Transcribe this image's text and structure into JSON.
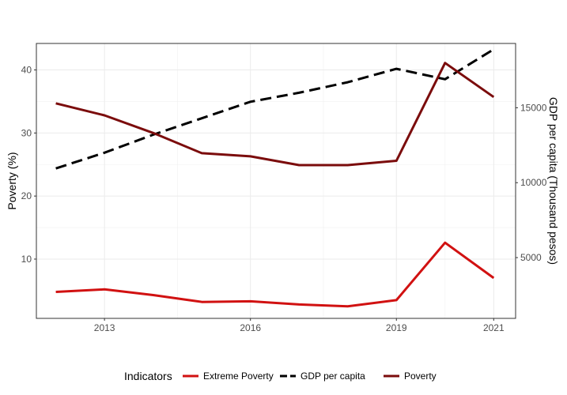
{
  "chart_data": {
    "type": "line",
    "title": "",
    "x": [
      2012,
      2013,
      2014,
      2015,
      2016,
      2017,
      2018,
      2019,
      2020,
      2021
    ],
    "xticks": [
      2013,
      2016,
      2019,
      2021
    ],
    "xlim": [
      2011.6,
      2021.45
    ],
    "ylabel": "Poverty (%)",
    "ylim": [
      0.6,
      44.2
    ],
    "yticks": [
      10,
      20,
      30,
      40
    ],
    "y2label": "GDP per capita (Thousand pesos)",
    "y2lim": [
      945,
      19290
    ],
    "y2ticks": [
      5000,
      10000,
      15000
    ],
    "grid": true,
    "legend": {
      "title": "Indicators",
      "position": "bottom"
    },
    "series": [
      {
        "name": "Extreme Poverty",
        "axis": "left",
        "color": "#d11111",
        "dash": "solid",
        "values": [
          4.8,
          5.2,
          4.3,
          3.2,
          3.3,
          2.8,
          2.5,
          3.5,
          12.6,
          7.0
        ]
      },
      {
        "name": "GDP per capita",
        "axis": "right",
        "color": "#000000",
        "dash": "dashed",
        "values": [
          10950,
          12000,
          13200,
          14300,
          15400,
          16000,
          16700,
          17600,
          16900,
          18900
        ]
      },
      {
        "name": "Poverty",
        "axis": "left",
        "color": "#7b0c0c",
        "dash": "solid",
        "values": [
          34.7,
          32.8,
          30.0,
          26.8,
          26.3,
          24.9,
          24.9,
          25.6,
          41.1,
          35.7
        ]
      }
    ]
  }
}
